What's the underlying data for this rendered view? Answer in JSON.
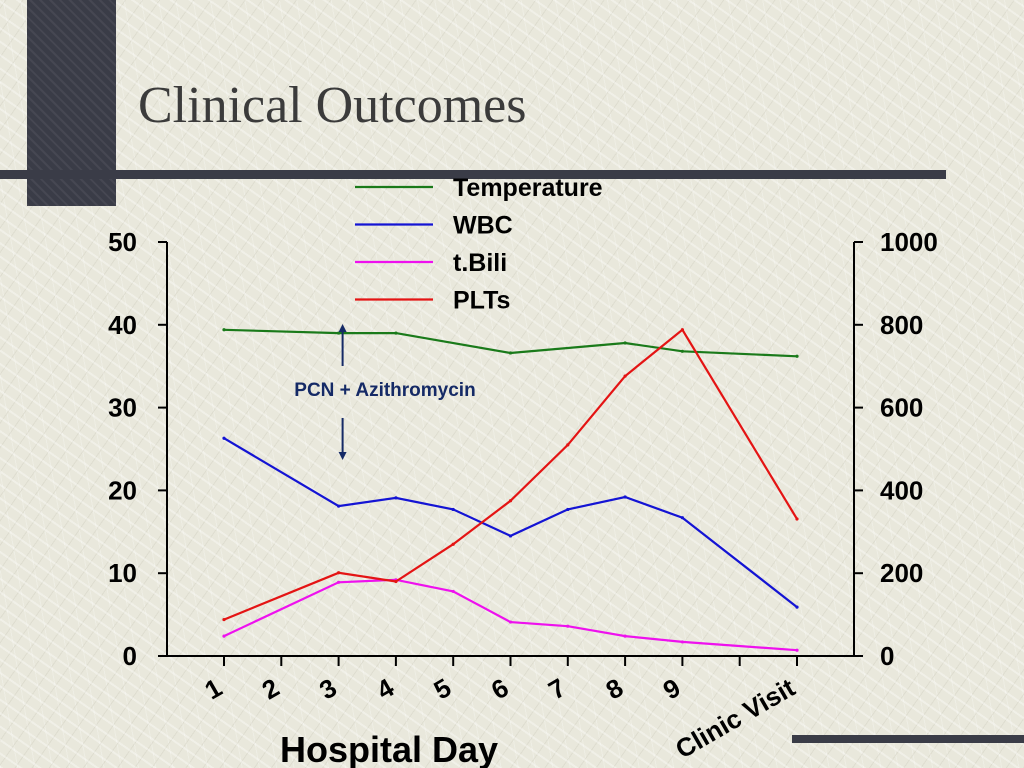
{
  "slide": {
    "title": "Clinical Outcomes"
  },
  "chart_data": {
    "type": "line",
    "categories": [
      "1",
      "2",
      "3",
      "4",
      "5",
      "6",
      "7",
      "8",
      "9",
      "",
      "Clinic Visit"
    ],
    "xlabel": "Hospital Day",
    "ylim": [
      0,
      50
    ],
    "y_ticks": [
      "0",
      "10",
      "20",
      "30",
      "40",
      "50"
    ],
    "y2lim": [
      0,
      1000
    ],
    "y2_ticks": [
      "0",
      "200",
      "400",
      "600",
      "800",
      "1000"
    ],
    "grid": false,
    "legend_position": "top-center",
    "series": [
      {
        "name": "Temperature",
        "axis": "left",
        "color": "#1a7a1a",
        "values": [
          39.4,
          null,
          39.0,
          39.0,
          null,
          36.6,
          null,
          37.8,
          36.8,
          null,
          36.2
        ]
      },
      {
        "name": "WBC",
        "axis": "left",
        "color": "#1414d4",
        "values": [
          26.3,
          null,
          18.1,
          19.1,
          17.7,
          14.5,
          17.7,
          19.2,
          16.7,
          null,
          5.9
        ]
      },
      {
        "name": "t.Bili",
        "axis": "left",
        "color": "#ee11ee",
        "values": [
          2.4,
          null,
          8.9,
          9.2,
          7.8,
          4.1,
          3.6,
          2.4,
          1.7,
          null,
          0.7
        ]
      },
      {
        "name": "PLTs",
        "axis": "right",
        "color": "#e41414",
        "values": [
          88,
          null,
          201,
          180,
          270,
          375,
          510,
          676,
          788,
          null,
          331
        ]
      }
    ],
    "annotations": [
      {
        "text": "PCN + Azithromycin",
        "at_category": "3",
        "color": "#152a66"
      }
    ]
  }
}
